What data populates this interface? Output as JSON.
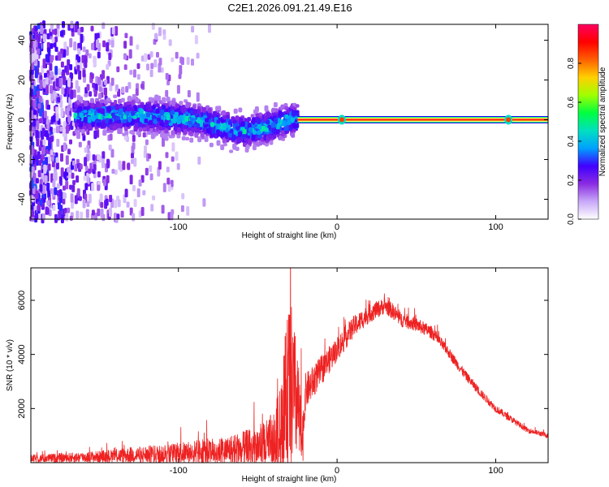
{
  "title": "C2E1.2026.091.21.49.E16",
  "chart_data": [
    {
      "type": "heatmap",
      "name": "spectrogram",
      "xlabel": "Height of straight line (km)",
      "ylabel": "Frequency (Hz)",
      "xlim": [
        -193,
        133
      ],
      "ylim": [
        -50,
        48
      ],
      "xticks": [
        -100,
        0,
        100
      ],
      "yticks": [
        -40,
        -20,
        0,
        20,
        40
      ],
      "description_points": {
        "noise_region_x": [
          -193,
          -125
        ],
        "signal_band_x": [
          -165,
          -25
        ],
        "signal_center_hz": [
          [
            -160,
            2
          ],
          [
            -120,
            2
          ],
          [
            -90,
            0
          ],
          [
            -60,
            -6
          ],
          [
            -45,
            -4
          ],
          [
            -30,
            0
          ]
        ],
        "carrier_line_x": [
          -25,
          133
        ],
        "carrier_freq_hz": 0,
        "carrier_peaks_x": [
          3,
          108
        ]
      },
      "colorbar": {
        "label": "Normalized spectral amplitude",
        "range": [
          0,
          1
        ],
        "ticks": [
          0.0,
          0.2,
          0.4,
          0.6,
          0.8
        ],
        "tick_labels": [
          "0.0",
          "0.2",
          "0.4",
          "0.6",
          "0.8"
        ],
        "colors": [
          "#ffffff",
          "#c8a8f8",
          "#8a2be2",
          "#4000ff",
          "#00a0ff",
          "#00e0c0",
          "#00ff40",
          "#a0ff00",
          "#ffd000",
          "#ff6000",
          "#ff0000",
          "#ff0060"
        ]
      }
    },
    {
      "type": "line",
      "name": "snr",
      "xlabel": "Height of straight line (km)",
      "ylabel": "SNR (10 * v/v)",
      "xlim": [
        -193,
        133
      ],
      "ylim": [
        0,
        7200
      ],
      "xticks": [
        -100,
        0,
        100
      ],
      "yticks": [
        2000,
        4000,
        6000
      ],
      "color": "#ee2222",
      "envelope": {
        "x": [
          -193,
          -170,
          -150,
          -130,
          -110,
          -90,
          -70,
          -55,
          -45,
          -40,
          -35,
          -32,
          -30,
          -28,
          -25,
          -22,
          -20,
          -15,
          -10,
          -5,
          0,
          5,
          10,
          20,
          30,
          35,
          40,
          50,
          60,
          70,
          80,
          90,
          100,
          110,
          120,
          133
        ],
        "base": [
          150,
          180,
          220,
          280,
          320,
          380,
          450,
          550,
          650,
          750,
          900,
          2500,
          2800,
          2600,
          2200,
          600,
          2600,
          3000,
          3400,
          3800,
          4200,
          4600,
          5000,
          5500,
          5800,
          5600,
          5300,
          5100,
          4800,
          4100,
          3300,
          2600,
          2000,
          1600,
          1200,
          1000
        ],
        "noise": [
          150,
          180,
          220,
          300,
          350,
          450,
          550,
          700,
          900,
          1200,
          2000,
          2500,
          3500,
          3000,
          2000,
          1200,
          700,
          600,
          550,
          500,
          450,
          450,
          400,
          350,
          300,
          300,
          280,
          260,
          240,
          200,
          180,
          160,
          140,
          120,
          100,
          100
        ]
      }
    }
  ]
}
